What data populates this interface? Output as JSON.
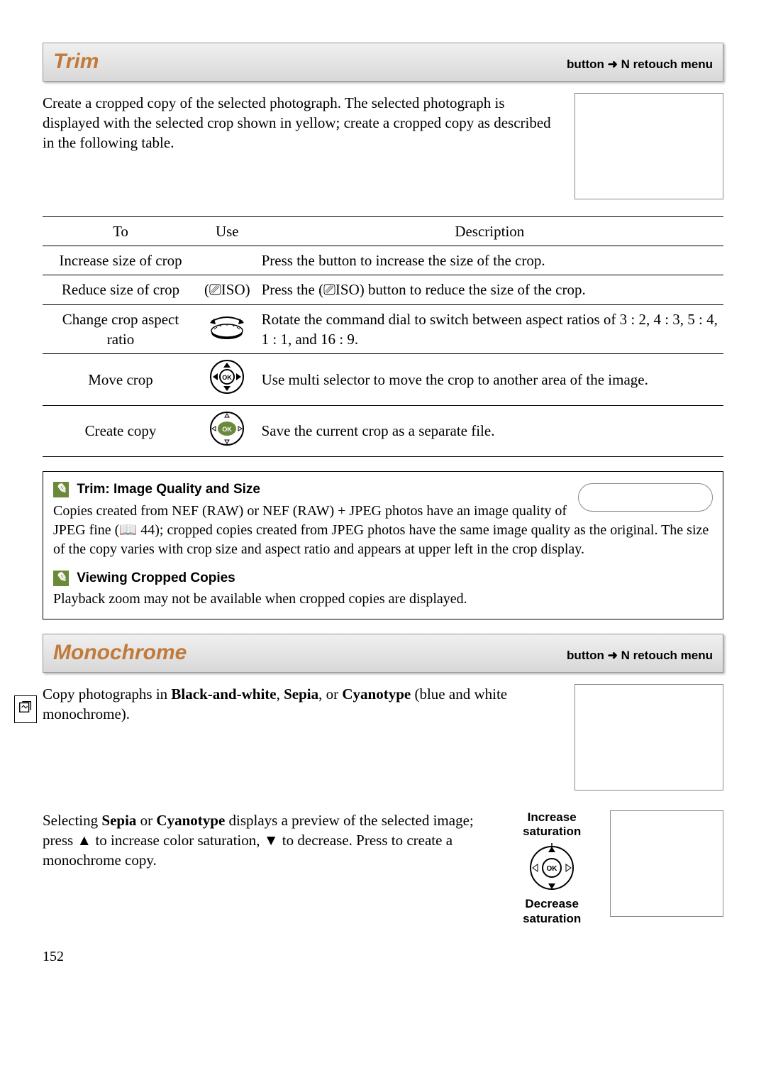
{
  "page_number": "152",
  "trim": {
    "title": "Trim",
    "breadcrumb": "button  ➜  N  retouch menu",
    "intro": "Create a cropped copy of the selected photograph.  The selected photograph is displayed with the selected crop shown in yellow; create a cropped copy as described in the following table.",
    "table": {
      "headers": {
        "to": "To",
        "use": "Use",
        "desc": "Description"
      },
      "rows": [
        {
          "to": "Increase size of crop",
          "use_icon": "",
          "desc": "Press the        button to increase the size of the crop."
        },
        {
          "to": "Reduce size of crop",
          "use_icon": "(⎚ISO)",
          "desc": "Press the  (⎚ISO) button to reduce the size of the crop."
        },
        {
          "to": "Change crop aspect ratio",
          "use_icon": "dial",
          "desc": "Rotate the command dial to switch between aspect ratios of 3 : 2, 4 : 3, 5 : 4, 1 : 1, and 16 : 9."
        },
        {
          "to": "Move crop",
          "use_icon": "selector",
          "desc": "Use multi selector to move the crop to another area of the image."
        },
        {
          "to": "Create copy",
          "use_icon": "ok",
          "desc": "Save the current crop as a separate file."
        }
      ]
    },
    "note1": {
      "heading": "Trim: Image Quality and Size",
      "body": "Copies created from NEF (RAW) or NEF (RAW) + JPEG photos have an image quality of JPEG fine (📖 44); cropped copies created from JPEG photos have the same image quality as the original.  The size of the copy varies with crop size and aspect ratio and appears at upper left in the crop display."
    },
    "note2": {
      "heading": "Viewing Cropped Copies",
      "body": "Playback zoom may not be available when cropped copies are displayed."
    }
  },
  "mono": {
    "title": "Monochrome",
    "breadcrumb": "button  ➜  N  retouch menu",
    "intro_html": "Copy photographs in <b>Black-and-white</b>, <b>Sepia</b>, or <b>Cyanotype</b> (blue and white monochrome).",
    "body_html": "Selecting <b>Sepia</b> or <b>Cyanotype</b> displays a preview of the selected image; press ▲ to increase color saturation, ▼ to decrease.  Press       to create a monochrome copy.",
    "increase_label": "Increase saturation",
    "decrease_label": "Decrease saturation"
  },
  "colors": {
    "heading": "#c17a3a",
    "note_icon_bg": "#6a8a3a"
  }
}
